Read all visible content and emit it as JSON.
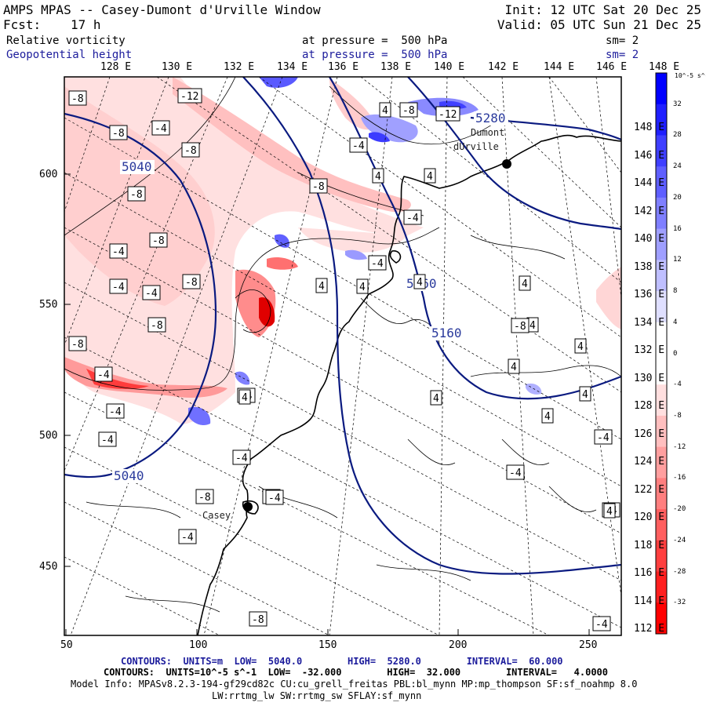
{
  "header": {
    "title": "AMPS MPAS -- Casey-Dumont d'Urville Window",
    "fcst_label": "Fcst:",
    "fcst_value": "17 h",
    "init": "Init: 12 UTC Sat 20 Dec 25",
    "valid": "Valid: 05 UTC Sun 21 Dec 25",
    "field1": "Relative vorticity",
    "field1_level": "at pressure =  500 hPa",
    "field1_sm": "sm= 2",
    "field2": "Geopotential height",
    "field2_level": "at pressure =  500 hPa",
    "field2_sm": "sm= 2"
  },
  "map": {
    "top_lon_labels": [
      "128 E",
      "130 E",
      "132 E",
      "134 E",
      "136 E",
      "138 E",
      "140 E",
      "142 E",
      "144 E",
      "146 E",
      "148 E"
    ],
    "right_lon_labels": [
      "148 E",
      "146 E",
      "144 E",
      "142 E",
      "140 E",
      "138 E",
      "136 E",
      "134 E",
      "132 E",
      "130 E",
      "128 E",
      "126 E",
      "124 E",
      "122 E",
      "120 E",
      "118 E",
      "116 E",
      "114 E",
      "112 E"
    ],
    "y_ticks": [
      "600",
      "550",
      "500",
      "450"
    ],
    "x_ticks": [
      "50",
      "100",
      "150",
      "200",
      "250"
    ],
    "stations": [
      {
        "name": "Dumont",
        "name2": "dUrville"
      },
      {
        "name": "Casey",
        "name2": ""
      }
    ],
    "height_contour_labels": [
      "5040",
      "5040",
      "5160",
      "5160",
      "5280"
    ],
    "vorticity_labels": [
      "-8",
      "-12",
      "-8",
      "-4",
      "-8",
      "-8",
      "-8",
      "-8",
      "-4",
      "-8",
      "-4",
      "-4",
      "-8",
      "-4",
      "-8",
      "-4",
      "-4",
      "-4",
      "-4",
      "-8",
      "4",
      "-8",
      "-12",
      "4",
      "4",
      "-4",
      "-4",
      "4",
      "4",
      "4",
      "4",
      "4",
      "4",
      "4",
      "4",
      "4",
      "-4",
      "4",
      "-4",
      "-4",
      "-4",
      "-8",
      "-4",
      "-4",
      "-4",
      "4",
      "-8",
      "4",
      "-4"
    ]
  },
  "colorbar": {
    "unit_label": "10^-5 s^-1",
    "labels": [
      "32",
      "28",
      "24",
      "20",
      "16",
      "12",
      "8",
      "4",
      "0",
      "-4",
      "-8",
      "-12",
      "-16",
      "-20",
      "-24",
      "-28",
      "-32"
    ],
    "colors": [
      "#0000ff",
      "#1f1fff",
      "#3f3fff",
      "#5f5fff",
      "#7f7fff",
      "#9f9fff",
      "#bfbfff",
      "#dfdfff",
      "#ffffff",
      "#ffffff",
      "#ffdfdf",
      "#ffbfbf",
      "#ff9f9f",
      "#ff7f7f",
      "#ff5f5f",
      "#ff3f3f",
      "#ff1f1f",
      "#ff0000"
    ]
  },
  "footer": {
    "line1": "CONTOURS:  UNITS=m  LOW=  5040.0        HIGH=  5280.0        INTERVAL=  60.000",
    "line2": "CONTOURS:  UNITS=10^-5 s^-1  LOW=  -32.000        HIGH=  32.000        INTERVAL=   4.0000",
    "line3": "Model Info: MPASv8.2.3-194-gf29cd82c CU:cu_grell_freitas PBL:bl_mynn MP:mp_thompson SF:sf_noahmp 8.0",
    "line4": "LW:rrtmg_lw SW:rrtmg_sw SFLAY:sf_mynn"
  }
}
